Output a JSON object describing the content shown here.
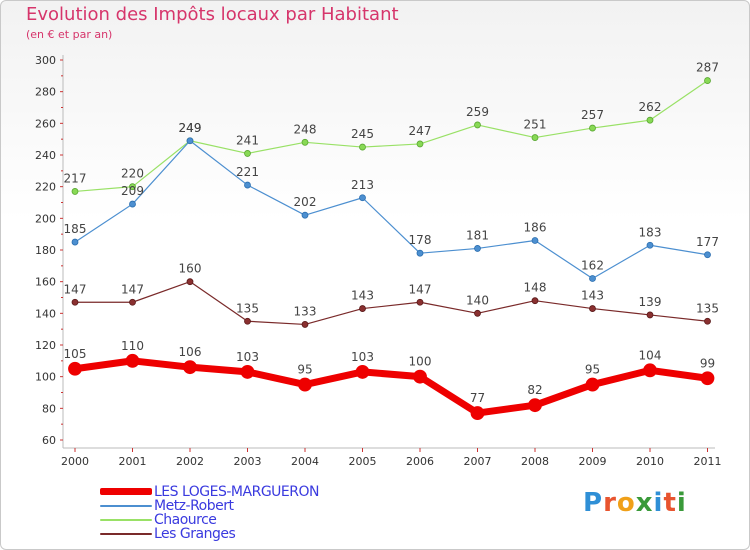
{
  "title": "Evolution des Impôts locaux par Habitant",
  "subtitle": "(en € et par an)",
  "logo": {
    "text": "Proxiti",
    "letter_colors": [
      "#2f8fd6",
      "#e8542f",
      "#f0a018",
      "#3a9a3a",
      "#2f8fd6",
      "#e8542f",
      "#3a9a3a"
    ]
  },
  "chart_data": {
    "type": "line",
    "x": [
      "2000",
      "2001",
      "2002",
      "2003",
      "2004",
      "2005",
      "2006",
      "2007",
      "2008",
      "2009",
      "2010",
      "2011"
    ],
    "ylim": [
      60,
      300
    ],
    "yticks": [
      60,
      80,
      100,
      120,
      140,
      160,
      180,
      200,
      220,
      240,
      260,
      280,
      300
    ],
    "grid": false,
    "legend_position": "bottom-left",
    "series": [
      {
        "name": "Chaource",
        "color": "#99e166",
        "values": [
          217,
          220,
          249,
          241,
          248,
          245,
          247,
          259,
          251,
          257,
          262,
          287
        ]
      },
      {
        "name": "Metz-Robert",
        "color": "#4c8fd0",
        "values": [
          185,
          209,
          249,
          221,
          202,
          213,
          178,
          181,
          186,
          162,
          183,
          177
        ]
      },
      {
        "name": "Les Granges",
        "color": "#7a2a2a",
        "values": [
          147,
          147,
          160,
          135,
          133,
          143,
          147,
          140,
          148,
          143,
          139,
          135
        ]
      },
      {
        "name": "LES LOGES-MARGUERON",
        "color": "#ee0000",
        "values": [
          105,
          110,
          106,
          103,
          95,
          103,
          100,
          77,
          82,
          95,
          104,
          99
        ]
      }
    ],
    "legend_order": [
      "LES LOGES-MARGUERON",
      "Metz-Robert",
      "Chaource",
      "Les Granges"
    ]
  }
}
